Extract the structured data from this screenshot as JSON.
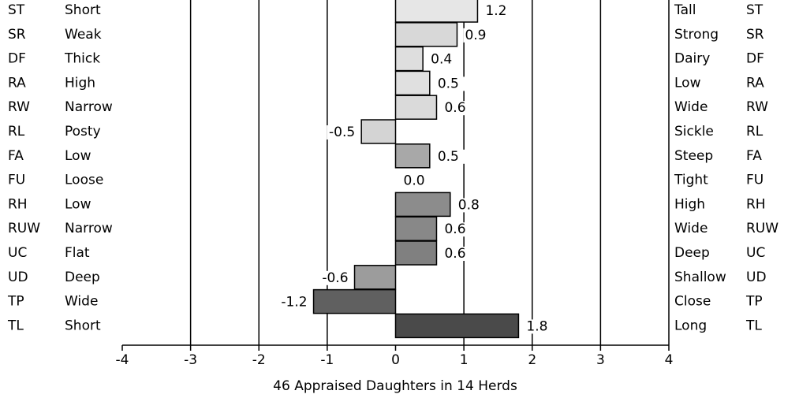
{
  "chart_data": {
    "type": "bar",
    "xlabel": "46 Appraised Daughters in 14 Herds",
    "categories": [
      "ST",
      "SR",
      "DF",
      "RA",
      "RW",
      "RL",
      "FA",
      "FU",
      "RH",
      "RUW",
      "UC",
      "UD",
      "TP",
      "TL"
    ],
    "left_labels": [
      "Short",
      "Weak",
      "Thick",
      "High",
      "Narrow",
      "Posty",
      "Low",
      "Loose",
      "Low",
      "Narrow",
      "Flat",
      "Deep",
      "Wide",
      "Short"
    ],
    "right_labels": [
      "Tall",
      "Strong",
      "Dairy",
      "Low",
      "Wide",
      "Sickle",
      "Steep",
      "Tight",
      "High",
      "Wide",
      "Deep",
      "Shallow",
      "Close",
      "Long"
    ],
    "values": [
      1.2,
      0.9,
      0.4,
      0.5,
      0.6,
      -0.5,
      0.5,
      0.0,
      0.8,
      0.6,
      0.6,
      -0.6,
      -1.2,
      1.8
    ],
    "value_labels": [
      "1.2",
      "0.9",
      "0.4",
      "0.5",
      "0.6",
      "-0.5",
      "0.5",
      "0.0",
      "0.8",
      "0.6",
      "0.6",
      "-0.6",
      "-1.2",
      "1.8"
    ],
    "colors": [
      "#e6e6e6",
      "#d8d8d8",
      "#dedede",
      "#e0e0e0",
      "#dadada",
      "#d4d4d4",
      "#a8a8a8",
      "#9a9a9a",
      "#8c8c8c",
      "#888888",
      "#808080",
      "#9c9c9c",
      "#606060",
      "#4a4a4a"
    ],
    "xlim": [
      -4,
      4
    ],
    "xticks": [
      -4,
      -3,
      -2,
      -1,
      0,
      1,
      2,
      3,
      4
    ],
    "grid": true
  }
}
